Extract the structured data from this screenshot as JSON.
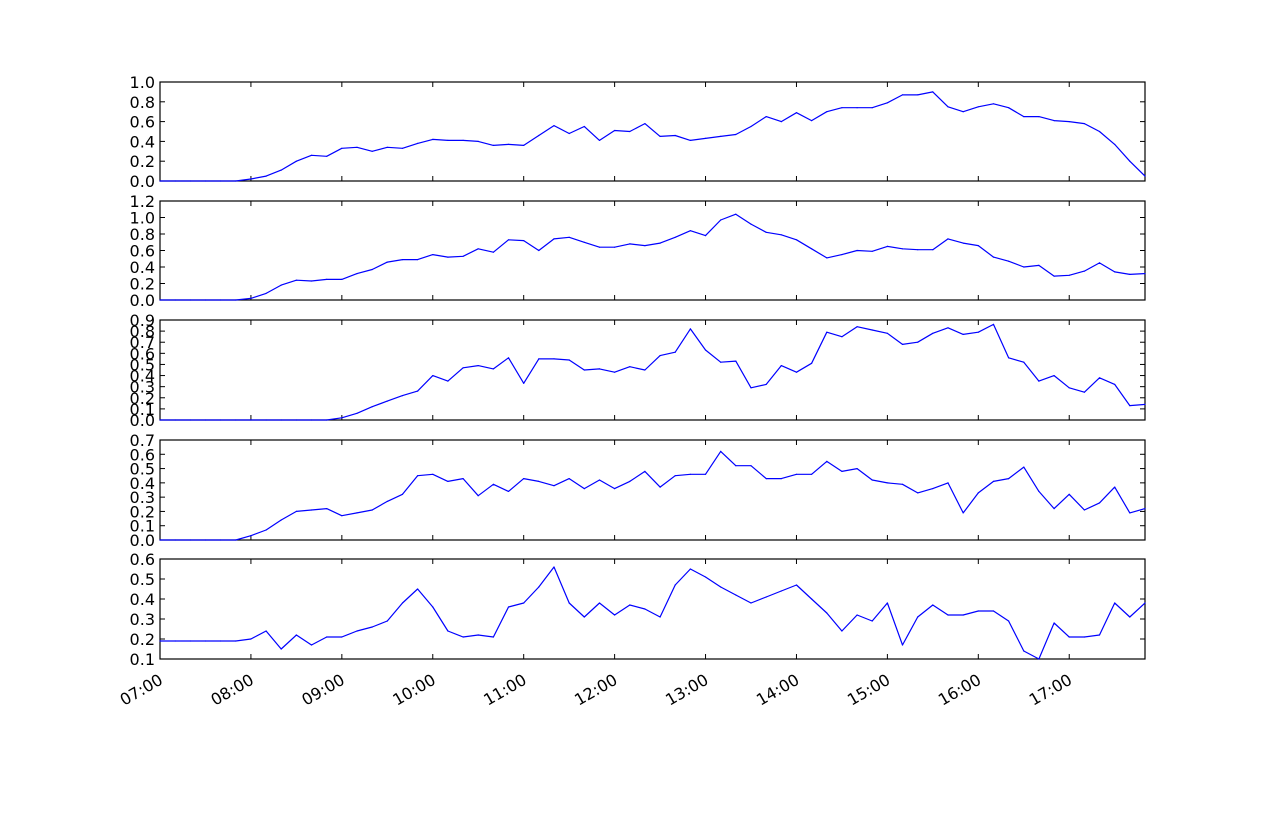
{
  "chart_data": [
    {
      "type": "line",
      "ylim": [
        0,
        1.0
      ],
      "yticks": [
        "0.0",
        "0.2",
        "0.4",
        "0.6",
        "0.8",
        "1.0"
      ],
      "y": [
        0,
        0,
        0,
        0,
        0,
        0,
        0.02,
        0.05,
        0.11,
        0.2,
        0.26,
        0.25,
        0.33,
        0.34,
        0.3,
        0.34,
        0.33,
        0.38,
        0.42,
        0.41,
        0.41,
        0.4,
        0.36,
        0.37,
        0.36,
        0.46,
        0.56,
        0.48,
        0.55,
        0.41,
        0.51,
        0.5,
        0.58,
        0.45,
        0.46,
        0.41,
        0.43,
        0.45,
        0.47,
        0.55,
        0.65,
        0.6,
        0.69,
        0.61,
        0.7,
        0.74,
        0.74,
        0.74,
        0.79,
        0.87,
        0.87,
        0.9,
        0.75,
        0.7,
        0.75,
        0.78,
        0.74,
        0.65,
        0.65,
        0.61,
        0.6,
        0.58,
        0.5,
        0.37,
        0.2,
        0.05
      ]
    },
    {
      "type": "line",
      "ylim": [
        0,
        1.2
      ],
      "yticks": [
        "0.0",
        "0.2",
        "0.4",
        "0.6",
        "0.8",
        "1.0",
        "1.2"
      ],
      "y": [
        0,
        0,
        0,
        0,
        0,
        0,
        0.02,
        0.08,
        0.18,
        0.24,
        0.23,
        0.25,
        0.25,
        0.32,
        0.37,
        0.46,
        0.49,
        0.49,
        0.55,
        0.52,
        0.53,
        0.62,
        0.58,
        0.73,
        0.72,
        0.6,
        0.74,
        0.76,
        0.7,
        0.64,
        0.64,
        0.68,
        0.66,
        0.69,
        0.76,
        0.84,
        0.78,
        0.97,
        1.04,
        0.92,
        0.82,
        0.79,
        0.73,
        0.62,
        0.51,
        0.55,
        0.6,
        0.59,
        0.65,
        0.62,
        0.61,
        0.61,
        0.74,
        0.69,
        0.66,
        0.52,
        0.47,
        0.4,
        0.42,
        0.29,
        0.3,
        0.35,
        0.45,
        0.34,
        0.31,
        0.32
      ]
    },
    {
      "type": "line",
      "ylim": [
        0,
        0.9
      ],
      "yticks": [
        "0.0",
        "0.1",
        "0.2",
        "0.3",
        "0.4",
        "0.5",
        "0.6",
        "0.7",
        "0.8",
        "0.9"
      ],
      "y": [
        0,
        0,
        0,
        0,
        0,
        0,
        0,
        0,
        0,
        0,
        0,
        0,
        0.02,
        0.06,
        0.12,
        0.17,
        0.22,
        0.26,
        0.4,
        0.35,
        0.47,
        0.49,
        0.46,
        0.56,
        0.33,
        0.55,
        0.55,
        0.54,
        0.45,
        0.46,
        0.43,
        0.48,
        0.45,
        0.58,
        0.61,
        0.82,
        0.63,
        0.52,
        0.53,
        0.29,
        0.32,
        0.49,
        0.43,
        0.51,
        0.79,
        0.75,
        0.84,
        0.81,
        0.78,
        0.68,
        0.7,
        0.78,
        0.83,
        0.77,
        0.79,
        0.86,
        0.56,
        0.52,
        0.35,
        0.4,
        0.29,
        0.25,
        0.38,
        0.32,
        0.13,
        0.14
      ]
    },
    {
      "type": "line",
      "ylim": [
        0,
        0.7
      ],
      "yticks": [
        "0.0",
        "0.1",
        "0.2",
        "0.3",
        "0.4",
        "0.5",
        "0.6",
        "0.7"
      ],
      "y": [
        0,
        0,
        0,
        0,
        0,
        0,
        0.03,
        0.07,
        0.14,
        0.2,
        0.21,
        0.22,
        0.17,
        0.19,
        0.21,
        0.27,
        0.32,
        0.45,
        0.46,
        0.41,
        0.43,
        0.31,
        0.39,
        0.34,
        0.43,
        0.41,
        0.38,
        0.43,
        0.36,
        0.42,
        0.36,
        0.41,
        0.48,
        0.37,
        0.45,
        0.46,
        0.46,
        0.62,
        0.52,
        0.52,
        0.43,
        0.43,
        0.46,
        0.46,
        0.55,
        0.48,
        0.5,
        0.42,
        0.4,
        0.39,
        0.33,
        0.36,
        0.4,
        0.19,
        0.33,
        0.41,
        0.43,
        0.51,
        0.34,
        0.22,
        0.32,
        0.21,
        0.26,
        0.37,
        0.19,
        0.22
      ]
    },
    {
      "type": "line",
      "ylim": [
        0.1,
        0.6
      ],
      "yticks": [
        "0.1",
        "0.2",
        "0.3",
        "0.4",
        "0.5",
        "0.6"
      ],
      "y": [
        0.19,
        0.19,
        0.19,
        0.19,
        0.19,
        0.19,
        0.2,
        0.24,
        0.15,
        0.22,
        0.17,
        0.21,
        0.21,
        0.24,
        0.26,
        0.29,
        0.38,
        0.45,
        0.36,
        0.24,
        0.21,
        0.22,
        0.21,
        0.36,
        0.38,
        0.46,
        0.56,
        0.38,
        0.31,
        0.38,
        0.32,
        0.37,
        0.35,
        0.31,
        0.47,
        0.55,
        0.51,
        0.46,
        0.42,
        0.38,
        0.41,
        0.44,
        0.47,
        0.4,
        0.33,
        0.24,
        0.32,
        0.29,
        0.38,
        0.17,
        0.31,
        0.37,
        0.32,
        0.32,
        0.34,
        0.34,
        0.29,
        0.14,
        0.1,
        0.28,
        0.21,
        0.21,
        0.22,
        0.38,
        0.31,
        0.38
      ]
    }
  ],
  "x_axis": {
    "start": "07:00",
    "interval_minutes": 10,
    "range": [
      "07:00",
      "17:50"
    ],
    "tick_labels": [
      "07:00",
      "08:00",
      "09:00",
      "10:00",
      "11:00",
      "12:00",
      "13:00",
      "14:00",
      "15:00",
      "16:00",
      "17:00"
    ]
  },
  "style": {
    "line_color": "#0000ff",
    "axes_color": "#000000"
  }
}
